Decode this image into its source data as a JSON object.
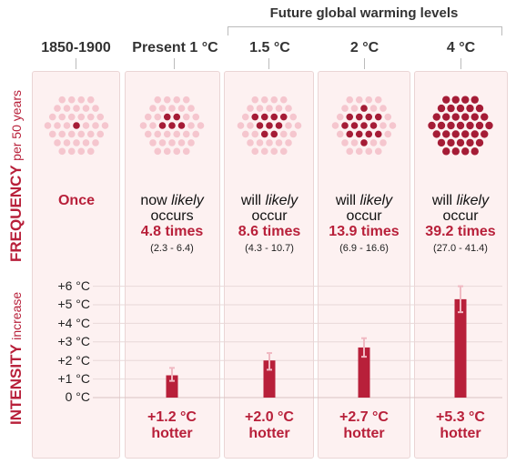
{
  "header": {
    "future_label": "Future global warming levels",
    "columns": [
      "1850-1900",
      "Present 1 °C",
      "1.5 °C",
      "2 °C",
      "4 °C"
    ]
  },
  "y_labels": {
    "frequency_main": "FREQUENCY",
    "frequency_sub": "per 50 years",
    "intensity_main": "INTENSITY",
    "intensity_sub": "increase"
  },
  "colors": {
    "accent": "#b8203a",
    "dot_light": "#f5c6ce",
    "panel": "#fdf1f1"
  },
  "chart_data": {
    "type": "bar",
    "categories": [
      "1850-1900",
      "Present 1 °C",
      "1.5 °C",
      "2 °C",
      "4 °C"
    ],
    "frequency": {
      "dots_total": 40,
      "dots_highlighted": [
        1,
        5,
        9,
        14,
        39
      ],
      "texts": [
        {
          "main": "Once",
          "pre": "",
          "likely": "",
          "post": "",
          "times": "",
          "range": ""
        },
        {
          "main": "",
          "pre": "now",
          "likely": "likely",
          "post": "occurs",
          "times": "4.8 times",
          "range": "(2.3 - 6.4)"
        },
        {
          "main": "",
          "pre": "will",
          "likely": "likely",
          "post": "occur",
          "times": "8.6 times",
          "range": "(4.3 - 10.7)"
        },
        {
          "main": "",
          "pre": "will",
          "likely": "likely",
          "post": "occur",
          "times": "13.9 times",
          "range": "(6.9 - 16.6)"
        },
        {
          "main": "",
          "pre": "will",
          "likely": "likely",
          "post": "occur",
          "times": "39.2 times",
          "range": "(27.0 - 41.4)"
        }
      ]
    },
    "intensity": {
      "values": [
        null,
        1.2,
        2.0,
        2.7,
        5.3
      ],
      "error_low": [
        null,
        0.9,
        1.5,
        2.2,
        4.6
      ],
      "error_high": [
        null,
        1.6,
        2.4,
        3.2,
        6.0
      ],
      "ylim": [
        0,
        6
      ],
      "ticks": [
        "0 °C",
        "+1 °C",
        "+2 °C",
        "+3 °C",
        "+4 °C",
        "+5 °C",
        "+6 °C"
      ],
      "labels": [
        "",
        "+1.2 °C",
        "+2.0 °C",
        "+2.7 °C",
        "+5.3 °C"
      ],
      "suffix": "hotter"
    }
  }
}
